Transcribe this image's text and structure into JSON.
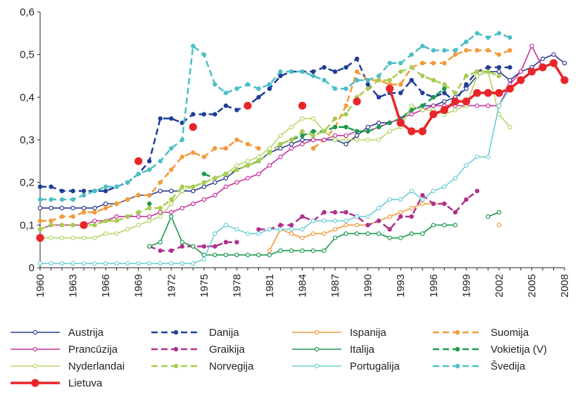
{
  "chart_data": {
    "type": "line",
    "x": [
      1960,
      1961,
      1962,
      1963,
      1964,
      1965,
      1966,
      1967,
      1968,
      1969,
      1970,
      1971,
      1972,
      1973,
      1974,
      1975,
      1976,
      1977,
      1978,
      1979,
      1980,
      1981,
      1982,
      1983,
      1984,
      1985,
      1986,
      1987,
      1988,
      1989,
      1990,
      1991,
      1992,
      1993,
      1994,
      1995,
      1996,
      1997,
      1998,
      1999,
      2000,
      2001,
      2002,
      2003,
      2004,
      2005,
      2006,
      2007,
      2008
    ],
    "xlim": [
      1960,
      2008
    ],
    "xticks": [
      1960,
      1963,
      1966,
      1969,
      1972,
      1975,
      1978,
      1981,
      1984,
      1987,
      1990,
      1993,
      1996,
      1999,
      2002,
      2005,
      2008
    ],
    "ylim": [
      0,
      0.6
    ],
    "yticks": [
      0,
      {
        "value": 0.1,
        "label": "0,1"
      },
      {
        "value": 0.2,
        "label": "0,2"
      },
      {
        "value": 0.3,
        "label": "0,3"
      },
      {
        "value": 0.4,
        "label": "0,4"
      },
      {
        "value": 0.5,
        "label": "0,5"
      },
      {
        "value": 0.6,
        "label": "0,6"
      }
    ],
    "series": [
      {
        "name": "Austrija",
        "color": "#2b3a8f",
        "dash": false,
        "marker": "open",
        "values": [
          0.14,
          0.14,
          0.14,
          0.14,
          0.14,
          0.14,
          0.15,
          0.15,
          0.16,
          0.17,
          0.17,
          0.18,
          0.18,
          0.18,
          0.18,
          0.19,
          0.2,
          0.21,
          0.23,
          0.24,
          0.25,
          0.27,
          0.28,
          0.29,
          0.3,
          0.3,
          0.3,
          0.3,
          0.29,
          0.31,
          0.33,
          0.34,
          0.34,
          0.35,
          0.37,
          0.38,
          0.38,
          0.39,
          0.4,
          0.42,
          0.45,
          0.46,
          0.46,
          0.44,
          0.46,
          0.47,
          0.49,
          0.5,
          0.48
        ]
      },
      {
        "name": "Danija",
        "color": "#1f3d99",
        "dash": true,
        "marker": "filled",
        "values": [
          0.19,
          0.19,
          0.18,
          0.18,
          0.18,
          0.18,
          0.18,
          0.19,
          0.2,
          0.22,
          0.25,
          0.35,
          0.35,
          0.34,
          0.36,
          0.36,
          0.36,
          0.38,
          0.37,
          0.38,
          0.4,
          0.42,
          0.45,
          0.46,
          0.46,
          0.46,
          0.47,
          0.46,
          0.47,
          0.49,
          0.43,
          0.4,
          0.41,
          0.41,
          0.44,
          0.41,
          0.4,
          0.41,
          0.39,
          0.43,
          0.46,
          0.47,
          0.47,
          0.47,
          null,
          null,
          null,
          null,
          null
        ]
      },
      {
        "name": "Ispanija",
        "color": "#f39a3a",
        "dash": false,
        "marker": "open",
        "values": [
          null,
          null,
          null,
          null,
          null,
          null,
          null,
          null,
          null,
          null,
          null,
          null,
          null,
          null,
          null,
          null,
          null,
          null,
          null,
          null,
          null,
          0.04,
          0.09,
          0.08,
          0.07,
          0.08,
          0.08,
          0.09,
          0.1,
          0.1,
          0.1,
          0.11,
          0.12,
          0.13,
          0.14,
          0.15,
          0.15,
          0.15,
          null,
          null,
          null,
          null,
          0.1,
          null,
          null,
          null,
          null,
          null,
          null
        ]
      },
      {
        "name": "Suomija",
        "color": "#f39a3a",
        "dash": true,
        "marker": "filled",
        "values": [
          0.11,
          0.11,
          0.12,
          0.12,
          0.13,
          0.13,
          0.14,
          0.15,
          0.16,
          0.17,
          0.17,
          0.2,
          0.23,
          0.26,
          0.27,
          0.26,
          0.28,
          0.28,
          0.3,
          0.29,
          0.28,
          null,
          null,
          null,
          null,
          0.28,
          0.3,
          0.33,
          0.38,
          0.46,
          0.44,
          0.44,
          0.43,
          0.43,
          0.47,
          0.48,
          0.48,
          0.48,
          0.5,
          0.51,
          0.51,
          0.51,
          0.5,
          0.51,
          null,
          null,
          null,
          null,
          null
        ]
      },
      {
        "name": "Prancūzija",
        "color": "#c8329a",
        "dash": false,
        "marker": "open",
        "values": [
          0.09,
          0.1,
          0.1,
          0.1,
          0.1,
          0.11,
          0.11,
          0.12,
          0.12,
          0.12,
          0.12,
          0.13,
          0.13,
          0.14,
          0.15,
          0.16,
          0.17,
          0.19,
          0.2,
          0.21,
          0.22,
          0.24,
          0.26,
          0.28,
          0.29,
          0.3,
          0.3,
          0.31,
          0.31,
          0.32,
          0.32,
          0.33,
          0.34,
          0.35,
          0.36,
          0.37,
          0.38,
          0.38,
          0.38,
          0.38,
          0.38,
          0.38,
          0.38,
          0.43,
          0.46,
          0.52,
          0.47,
          null,
          null
        ]
      },
      {
        "name": "Graikija",
        "color": "#b0308c",
        "dash": true,
        "marker": "filled",
        "values": [
          null,
          null,
          null,
          null,
          null,
          null,
          null,
          null,
          null,
          null,
          0.05,
          0.04,
          0.04,
          0.05,
          0.05,
          0.05,
          0.05,
          0.06,
          0.06,
          null,
          0.09,
          0.09,
          0.1,
          0.1,
          0.12,
          0.11,
          0.13,
          0.13,
          0.13,
          0.12,
          0.1,
          0.11,
          0.09,
          0.12,
          0.12,
          0.17,
          0.15,
          0.15,
          0.13,
          0.16,
          0.18,
          null,
          null,
          null,
          null,
          null,
          null,
          null,
          null
        ]
      },
      {
        "name": "Italija",
        "color": "#1a9a4a",
        "dash": false,
        "marker": "open",
        "values": [
          null,
          null,
          null,
          null,
          null,
          null,
          null,
          null,
          null,
          null,
          0.05,
          0.06,
          0.12,
          0.06,
          0.05,
          0.03,
          0.03,
          0.03,
          0.03,
          0.03,
          0.03,
          0.03,
          0.04,
          0.04,
          0.04,
          0.04,
          0.04,
          0.07,
          0.08,
          0.08,
          0.08,
          0.08,
          0.07,
          0.07,
          0.08,
          0.08,
          0.1,
          0.1,
          0.1,
          null,
          null,
          0.12,
          0.13,
          null,
          null,
          null,
          null,
          null,
          null
        ]
      },
      {
        "name": "Vokietija (V)",
        "color": "#1a9a4a",
        "dash": true,
        "marker": "filled",
        "values": [
          null,
          null,
          null,
          null,
          null,
          null,
          null,
          null,
          null,
          null,
          0.15,
          null,
          null,
          null,
          null,
          0.22,
          0.21,
          0.22,
          0.23,
          0.24,
          0.25,
          0.27,
          0.29,
          0.3,
          0.31,
          0.32,
          0.32,
          0.33,
          0.33,
          0.32,
          0.32,
          0.33,
          0.34,
          0.35,
          0.37,
          0.38,
          0.4,
          0.42,
          null,
          null,
          null,
          null,
          null,
          null,
          null,
          null,
          null,
          null,
          null
        ]
      },
      {
        "name": "Nyderlandai",
        "color": "#b5d56a",
        "dash": false,
        "marker": "open",
        "values": [
          0.07,
          0.07,
          0.07,
          0.07,
          0.07,
          0.07,
          0.08,
          0.08,
          0.09,
          0.1,
          0.11,
          0.12,
          0.15,
          0.18,
          0.19,
          0.2,
          0.21,
          0.22,
          0.24,
          0.25,
          0.26,
          0.28,
          0.31,
          0.33,
          0.35,
          0.35,
          0.32,
          0.3,
          0.3,
          0.3,
          0.3,
          0.3,
          0.32,
          0.33,
          0.38,
          0.37,
          0.37,
          0.36,
          0.37,
          0.38,
          0.45,
          0.46,
          0.36,
          0.33,
          null,
          null,
          null,
          null,
          null
        ]
      },
      {
        "name": "Norvegija",
        "color": "#a8cc50",
        "dash": true,
        "marker": "filled",
        "values": [
          0.09,
          0.1,
          0.1,
          0.1,
          0.1,
          0.1,
          0.11,
          0.11,
          0.12,
          0.13,
          0.14,
          0.14,
          0.16,
          0.19,
          0.19,
          0.2,
          0.21,
          0.22,
          0.23,
          0.24,
          0.25,
          0.27,
          0.29,
          0.3,
          0.32,
          0.31,
          0.32,
          0.35,
          0.36,
          0.4,
          0.42,
          0.44,
          0.44,
          0.46,
          0.47,
          0.45,
          0.44,
          0.43,
          0.41,
          0.45,
          0.46,
          0.46,
          0.45,
          null,
          null,
          null,
          null,
          null,
          null
        ]
      },
      {
        "name": "Portugalija",
        "color": "#6dcfd5",
        "dash": false,
        "marker": "open",
        "values": [
          0.01,
          0.01,
          0.01,
          0.01,
          0.01,
          0.01,
          0.01,
          0.01,
          0.01,
          0.01,
          0.01,
          0.01,
          0.01,
          0.01,
          0.01,
          0.02,
          0.08,
          0.1,
          0.09,
          0.08,
          0.08,
          0.09,
          0.09,
          0.09,
          0.09,
          0.11,
          0.11,
          0.11,
          0.11,
          0.12,
          0.12,
          0.14,
          0.16,
          0.16,
          0.18,
          0.16,
          0.18,
          0.19,
          0.21,
          0.24,
          0.26,
          0.26,
          0.38,
          0.42,
          null,
          null,
          null,
          null,
          null
        ]
      },
      {
        "name": "Švedija",
        "color": "#4bbfc4",
        "dash": true,
        "marker": "filled",
        "values": [
          0.16,
          0.16,
          0.16,
          0.16,
          0.17,
          0.18,
          0.19,
          0.19,
          0.2,
          0.22,
          0.23,
          0.25,
          0.28,
          0.3,
          0.52,
          0.5,
          0.43,
          0.41,
          0.42,
          0.43,
          0.42,
          0.43,
          0.46,
          0.46,
          0.46,
          0.45,
          0.44,
          0.42,
          0.42,
          0.44,
          0.44,
          0.45,
          0.48,
          0.48,
          0.5,
          0.52,
          0.51,
          0.51,
          0.51,
          0.53,
          0.55,
          0.54,
          0.55,
          0.54,
          null,
          null,
          null,
          null,
          null
        ]
      },
      {
        "name": "Lietuva",
        "color": "#e8262a",
        "dash": false,
        "marker": "big",
        "values": [
          0.07,
          null,
          null,
          null,
          0.1,
          null,
          null,
          null,
          null,
          0.25,
          null,
          null,
          null,
          null,
          0.33,
          null,
          null,
          null,
          null,
          0.38,
          null,
          null,
          null,
          null,
          0.38,
          null,
          null,
          null,
          null,
          0.39,
          null,
          null,
          0.42,
          0.34,
          0.32,
          0.32,
          0.36,
          0.37,
          0.39,
          0.39,
          0.41,
          0.41,
          0.41,
          0.42,
          0.44,
          0.46,
          0.47,
          0.48,
          0.44
        ]
      }
    ]
  }
}
